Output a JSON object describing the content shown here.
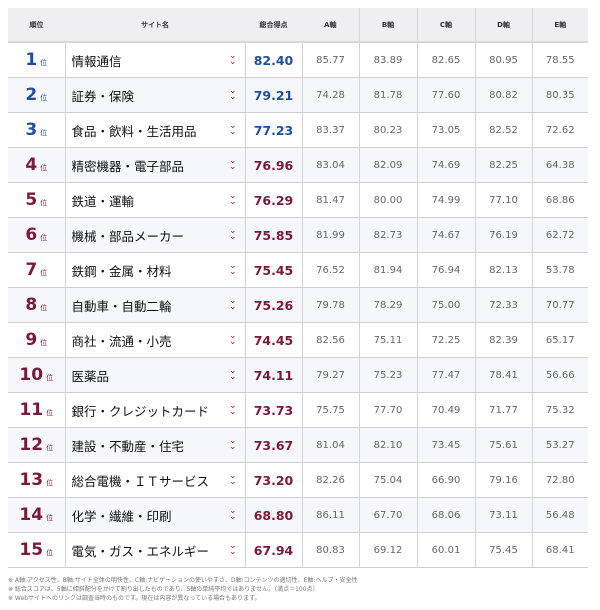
{
  "colors": {
    "top3": "#1f4fa3",
    "others": "#7d1838"
  },
  "headers": [
    "順位",
    "サイト名",
    "総合得点",
    "A軸",
    "B軸",
    "C軸",
    "D軸",
    "E軸"
  ],
  "rank_suffix": "位",
  "rows": [
    {
      "rank": "1",
      "name": "情報通信",
      "total": "82.40",
      "a": "85.77",
      "b": "83.89",
      "c": "82.65",
      "d": "80.95",
      "e": "78.55"
    },
    {
      "rank": "2",
      "name": "証券・保険",
      "total": "79.21",
      "a": "74.28",
      "b": "81.78",
      "c": "77.60",
      "d": "80.82",
      "e": "80.35"
    },
    {
      "rank": "3",
      "name": "食品・飲料・生活用品",
      "total": "77.23",
      "a": "83.37",
      "b": "80.23",
      "c": "73.05",
      "d": "82.52",
      "e": "72.62"
    },
    {
      "rank": "4",
      "name": "精密機器・電子部品",
      "total": "76.96",
      "a": "83.04",
      "b": "82.09",
      "c": "74.69",
      "d": "82.25",
      "e": "64.38"
    },
    {
      "rank": "5",
      "name": "鉄道・運輸",
      "total": "76.29",
      "a": "81.47",
      "b": "80.00",
      "c": "74.99",
      "d": "77.10",
      "e": "68.86"
    },
    {
      "rank": "6",
      "name": "機械・部品メーカー",
      "total": "75.85",
      "a": "81.99",
      "b": "82.73",
      "c": "74.67",
      "d": "76.19",
      "e": "62.72"
    },
    {
      "rank": "7",
      "name": "鉄鋼・金属・材料",
      "total": "75.45",
      "a": "76.52",
      "b": "81.94",
      "c": "76.94",
      "d": "82.13",
      "e": "53.78"
    },
    {
      "rank": "8",
      "name": "自動車・自動二輪",
      "total": "75.26",
      "a": "79.78",
      "b": "78.29",
      "c": "75.00",
      "d": "72.33",
      "e": "70.77"
    },
    {
      "rank": "9",
      "name": "商社・流通・小売",
      "total": "74.45",
      "a": "82.56",
      "b": "75.11",
      "c": "72.25",
      "d": "82.39",
      "e": "65.17"
    },
    {
      "rank": "10",
      "name": "医薬品",
      "total": "74.11",
      "a": "79.27",
      "b": "75.23",
      "c": "77.47",
      "d": "78.41",
      "e": "56.66"
    },
    {
      "rank": "11",
      "name": "銀行・クレジットカード",
      "total": "73.73",
      "a": "75.75",
      "b": "77.70",
      "c": "70.49",
      "d": "71.77",
      "e": "75.32"
    },
    {
      "rank": "12",
      "name": "建設・不動産・住宅",
      "total": "73.67",
      "a": "81.04",
      "b": "82.10",
      "c": "73.45",
      "d": "75.61",
      "e": "53.27"
    },
    {
      "rank": "13",
      "name": "総合電機・ＩＴサービス",
      "total": "73.20",
      "a": "82.26",
      "b": "75.04",
      "c": "66.90",
      "d": "79.16",
      "e": "72.80"
    },
    {
      "rank": "14",
      "name": "化学・繊維・印刷",
      "total": "68.80",
      "a": "86.11",
      "b": "67.70",
      "c": "68.06",
      "d": "73.11",
      "e": "56.48"
    },
    {
      "rank": "15",
      "name": "電気・ガス・エネルギー",
      "total": "67.94",
      "a": "80.83",
      "b": "69.12",
      "c": "60.01",
      "d": "75.45",
      "e": "68.41"
    }
  ],
  "notes": [
    "※ A軸:アクセス性、B軸:サイト全体の明快性、C軸:ナビゲーションの使いやすさ、D軸:コンテンツの適切性、E軸:ヘルプ・安全性",
    "※ 総合スコアは、5軸に傾斜配分をかけて割り出したものであり、5軸の単純平均ではありません。（満点＝100点）",
    "※ Webサイトへのリンクは調査当時のものです。現在は内容が異なっている場合もあります。"
  ]
}
